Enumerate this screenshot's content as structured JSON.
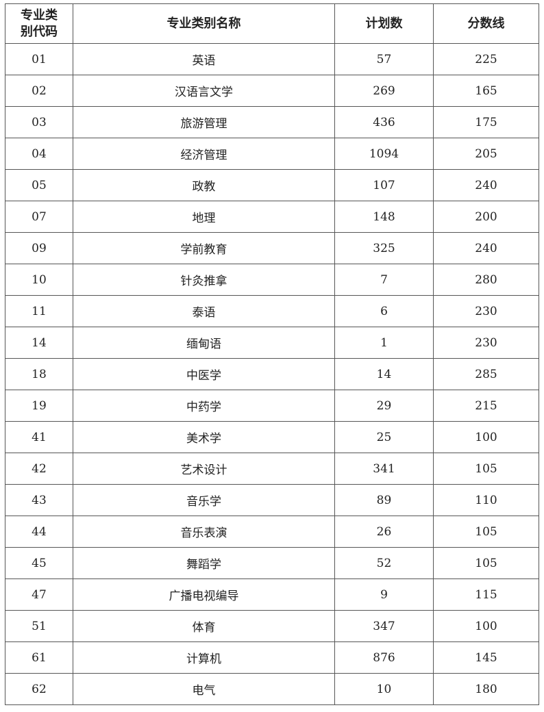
{
  "headers": [
    "专业类别代码",
    "专业类别名称",
    "计划数",
    "分数线"
  ],
  "rows": [
    [
      "01",
      "英语",
      "57",
      "225"
    ],
    [
      "02",
      "汉语言文学",
      "269",
      "165"
    ],
    [
      "03",
      "旅游管理",
      "436",
      "175"
    ],
    [
      "04",
      "经济管理",
      "1094",
      "205"
    ],
    [
      "05",
      "政教",
      "107",
      "240"
    ],
    [
      "07",
      "地理",
      "148",
      "200"
    ],
    [
      "09",
      "学前教育",
      "325",
      "240"
    ],
    [
      "10",
      "针灸推拿",
      "7",
      "280"
    ],
    [
      "11",
      "泰语",
      "6",
      "230"
    ],
    [
      "14",
      "缅甸语",
      "1",
      "230"
    ],
    [
      "18",
      "中医学",
      "14",
      "285"
    ],
    [
      "19",
      "中药学",
      "29",
      "215"
    ],
    [
      "41",
      "美术学",
      "25",
      "100"
    ],
    [
      "42",
      "艺术设计",
      "341",
      "105"
    ],
    [
      "43",
      "音乐学",
      "89",
      "110"
    ],
    [
      "44",
      "音乐表演",
      "26",
      "105"
    ],
    [
      "45",
      "舞蹈学",
      "52",
      "105"
    ],
    [
      "47",
      "广播电视编导",
      "9",
      "115"
    ],
    [
      "51",
      "体育",
      "347",
      "100"
    ],
    [
      "61",
      "计算机",
      "876",
      "145"
    ],
    [
      "62",
      "电气",
      "10",
      "180"
    ]
  ]
}
